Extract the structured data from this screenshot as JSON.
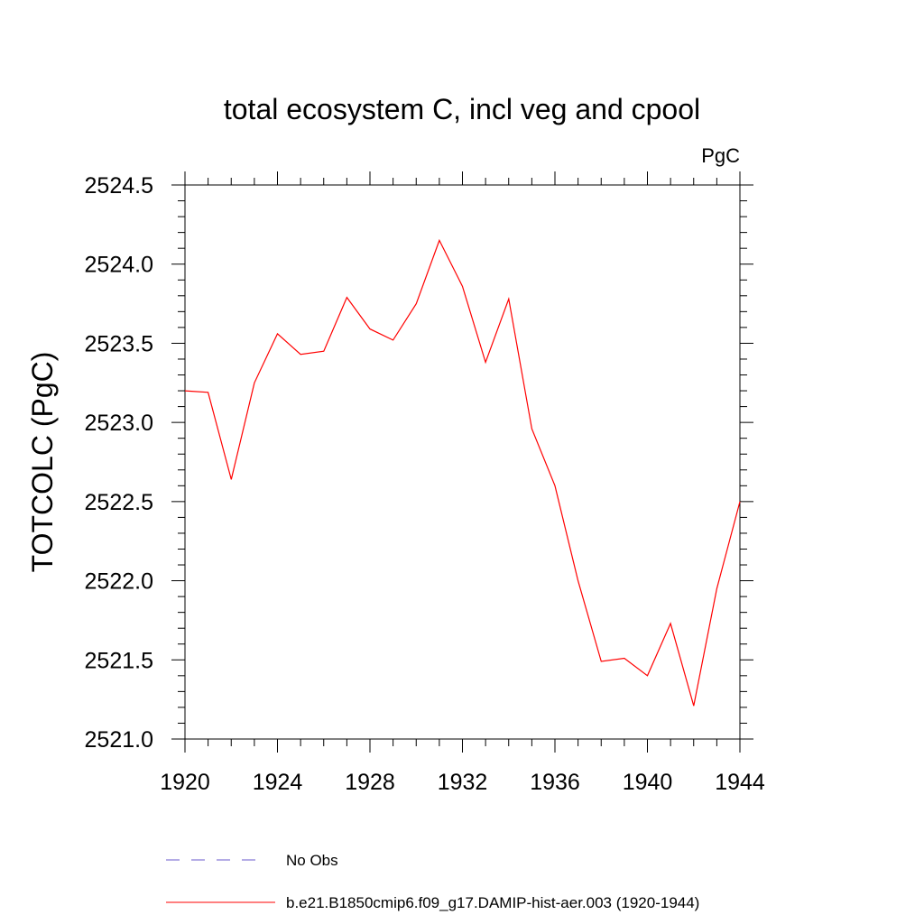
{
  "chart_data": {
    "type": "line",
    "title": "total ecosystem C, incl veg and cpool",
    "units_label": "PgC",
    "xlabel": "",
    "ylabel": "TOTCOLC  (PgC)",
    "xlim": [
      1920,
      1944
    ],
    "ylim": [
      2521.0,
      2524.5
    ],
    "x_ticks": [
      1920,
      1924,
      1928,
      1932,
      1936,
      1940,
      1944
    ],
    "x_tick_labels": [
      "1920",
      "1924",
      "1928",
      "1932",
      "1936",
      "1940",
      "1944"
    ],
    "y_ticks": [
      2521.0,
      2521.5,
      2522.0,
      2522.5,
      2523.0,
      2523.5,
      2524.0,
      2524.5
    ],
    "y_tick_labels": [
      "2521.0",
      "2521.5",
      "2522.0",
      "2522.5",
      "2523.0",
      "2523.5",
      "2524.0",
      "2524.5"
    ],
    "grid": false,
    "legend_position": "bottom",
    "series": [
      {
        "name": "b.e21.B1850cmip6.f09_g17.DAMIP-hist-aer.003 (1920-1944)",
        "color": "#ff0000",
        "style": "solid",
        "x": [
          1920,
          1921,
          1922,
          1923,
          1924,
          1925,
          1926,
          1927,
          1928,
          1929,
          1930,
          1931,
          1932,
          1933,
          1934,
          1935,
          1936,
          1937,
          1938,
          1939,
          1940,
          1941,
          1942,
          1943,
          1944
        ],
        "y": [
          2523.2,
          2523.19,
          2522.64,
          2523.25,
          2523.56,
          2523.43,
          2523.45,
          2523.79,
          2523.59,
          2523.52,
          2523.75,
          2524.15,
          2523.86,
          2523.38,
          2523.78,
          2522.96,
          2522.6,
          2522.0,
          2521.49,
          2521.51,
          2521.4,
          2521.73,
          2521.21,
          2521.95,
          2522.5
        ]
      }
    ],
    "legend": [
      {
        "label": "No Obs",
        "color": "#6a5acd",
        "style": "dashed"
      },
      {
        "label": "b.e21.B1850cmip6.f09_g17.DAMIP-hist-aer.003 (1920-1944)",
        "color": "#ff0000",
        "style": "solid"
      }
    ]
  }
}
